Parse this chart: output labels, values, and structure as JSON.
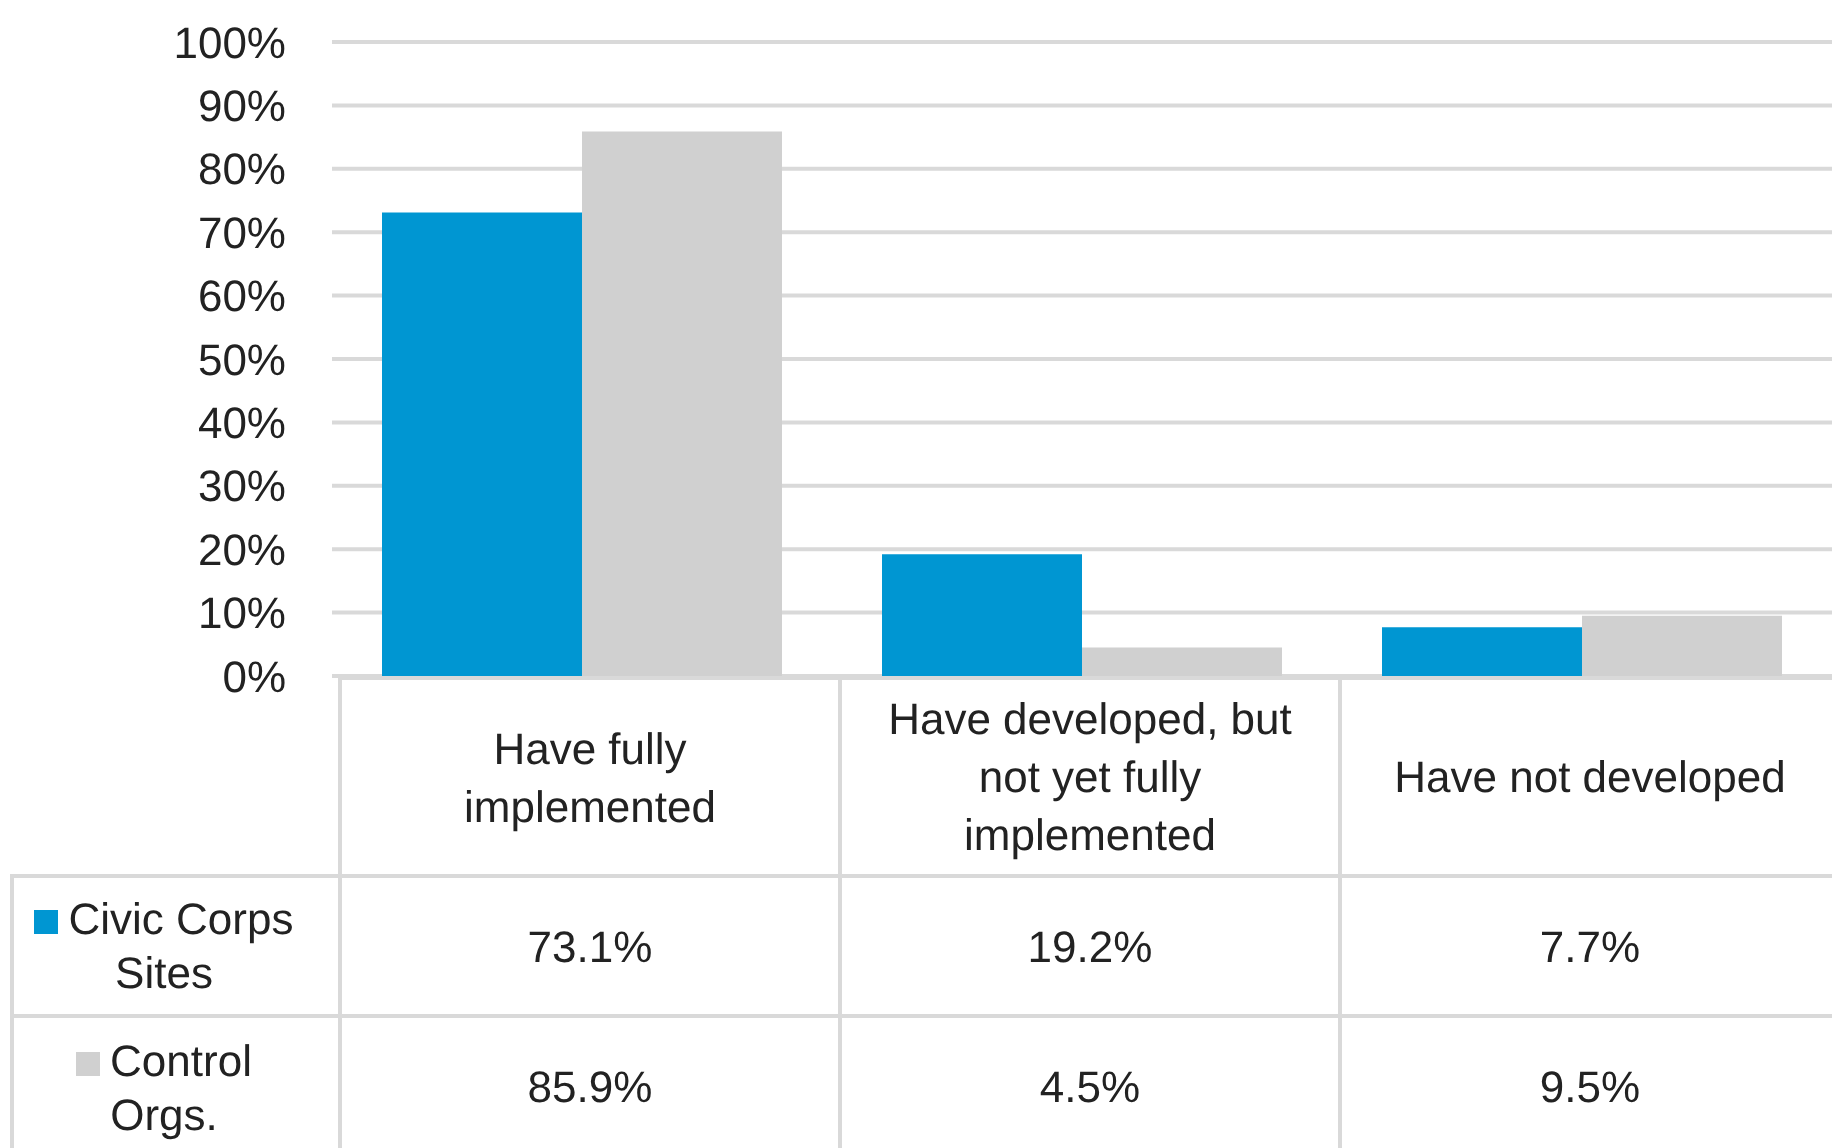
{
  "chart_data": {
    "type": "bar",
    "categories": [
      "Have fully implemented",
      "Have developed, but not yet fully implemented",
      "Have not developed"
    ],
    "series": [
      {
        "name": "Civic Corps Sites",
        "color": "#0096d2",
        "values": [
          73.1,
          19.2,
          7.7
        ],
        "value_labels": [
          "73.1%",
          "19.2%",
          "7.7%"
        ]
      },
      {
        "name": "Control Orgs.",
        "color": "#d0d0d0",
        "values": [
          85.9,
          4.5,
          9.5
        ],
        "value_labels": [
          "85.9%",
          "4.5%",
          "9.5%"
        ]
      }
    ],
    "ylim": [
      0,
      100
    ],
    "yticks": [
      {
        "value": 0,
        "label": "0%"
      },
      {
        "value": 10,
        "label": "10%"
      },
      {
        "value": 20,
        "label": "20%"
      },
      {
        "value": 30,
        "label": "30%"
      },
      {
        "value": 40,
        "label": "40%"
      },
      {
        "value": 50,
        "label": "50%"
      },
      {
        "value": 60,
        "label": "60%"
      },
      {
        "value": 70,
        "label": "70%"
      },
      {
        "value": 80,
        "label": "80%"
      },
      {
        "value": 90,
        "label": "90%"
      },
      {
        "value": 100,
        "label": "100%"
      }
    ],
    "grid": "y",
    "legend": "bottom left"
  }
}
